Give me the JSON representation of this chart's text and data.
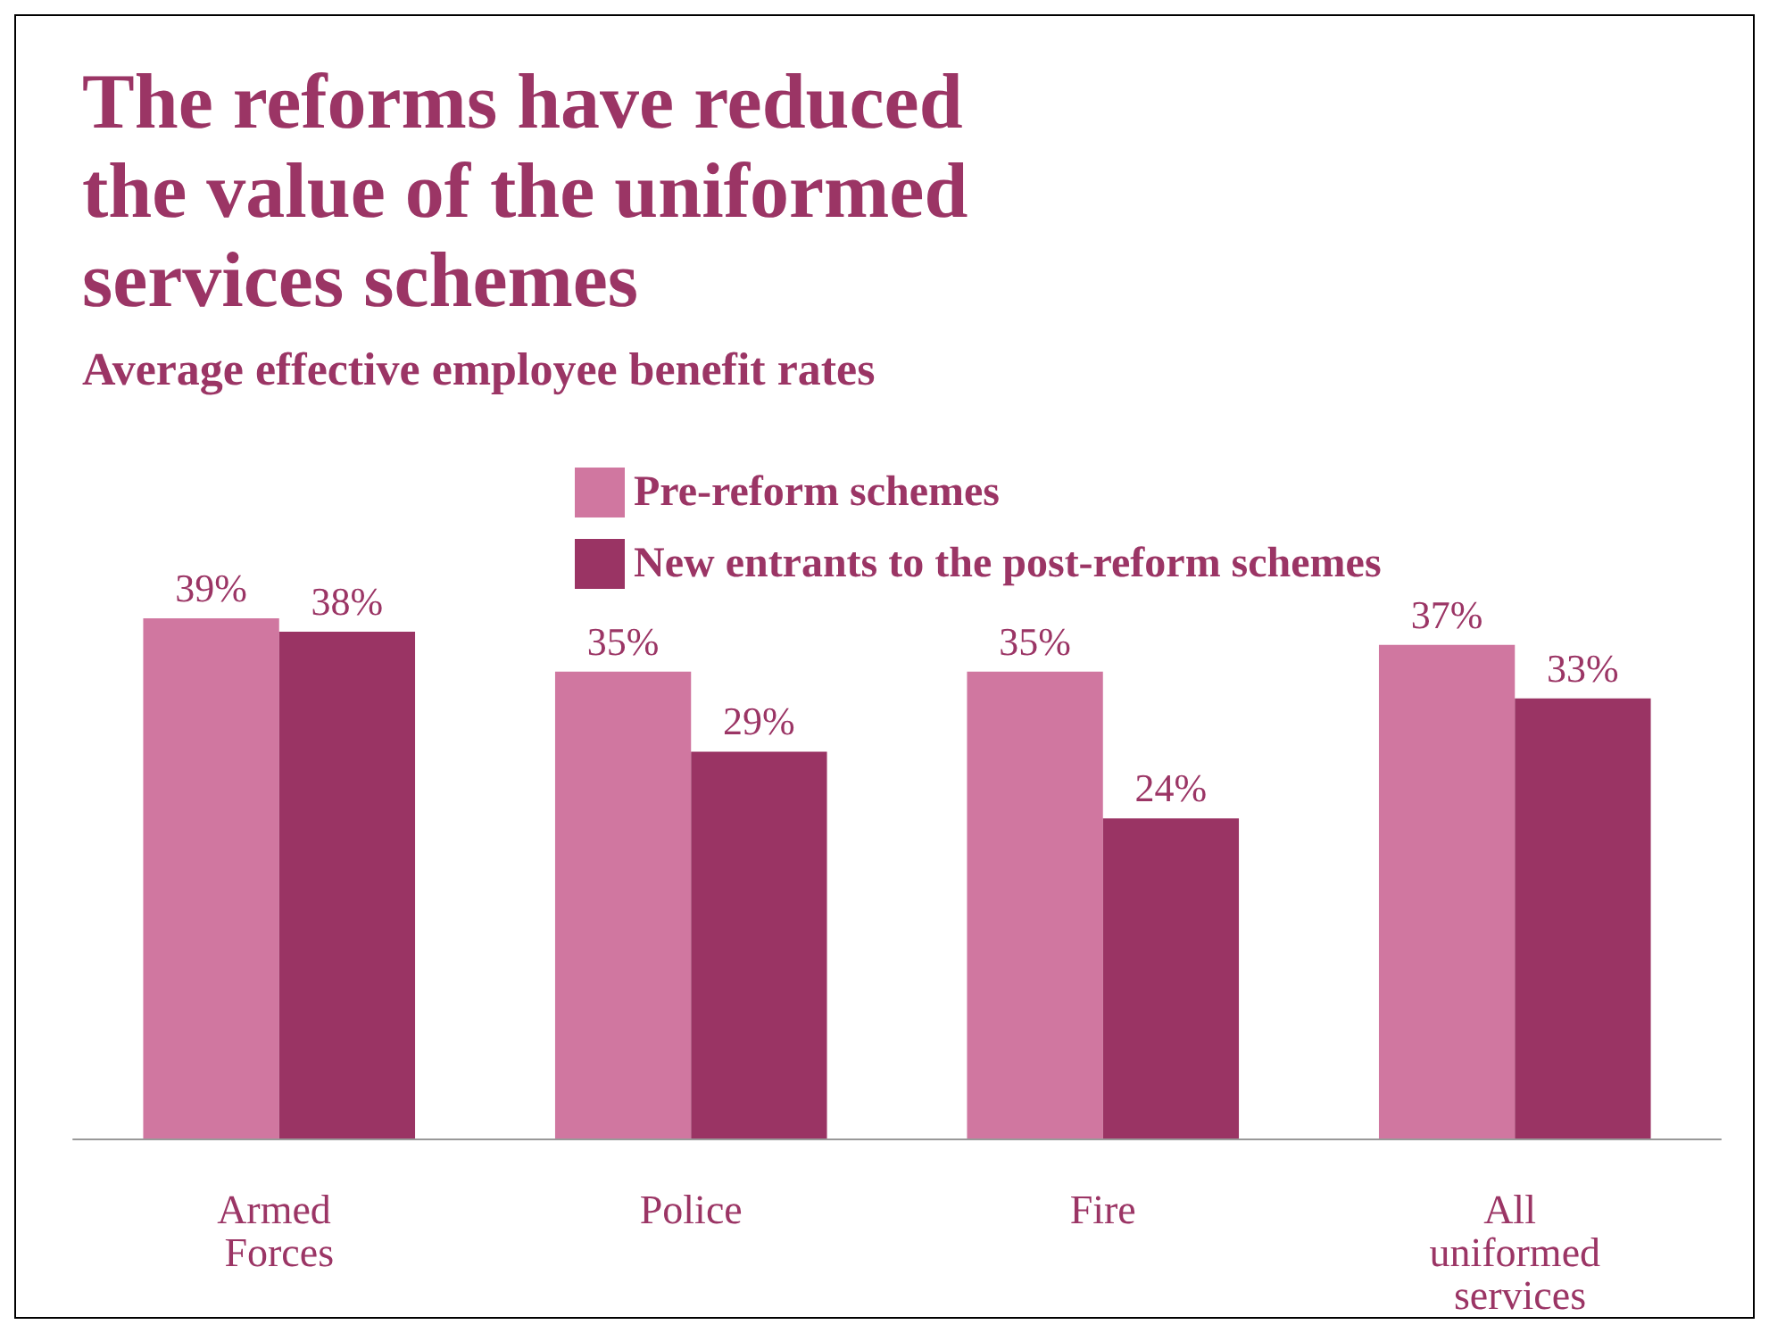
{
  "chart_data": {
    "type": "bar",
    "title": "The reforms have reduced the value of the uniformed services schemes",
    "subtitle": "Average effective employee benefit rates",
    "categories": [
      "Armed Forces",
      "Police",
      "Fire",
      "All uniformed services"
    ],
    "series": [
      {
        "name": "Pre-reform schemes",
        "color": "#d077a0",
        "values": [
          39,
          35,
          35,
          37
        ],
        "value_labels": [
          "39%",
          "35%",
          "35%",
          "37%"
        ]
      },
      {
        "name": "New entrants to the post-reform schemes",
        "color": "#9a3464",
        "values": [
          38,
          29,
          24,
          33
        ],
        "value_labels": [
          "38%",
          "29%",
          "24%",
          "33%"
        ]
      }
    ],
    "tick_labels": "x",
    "legend": "top"
  }
}
